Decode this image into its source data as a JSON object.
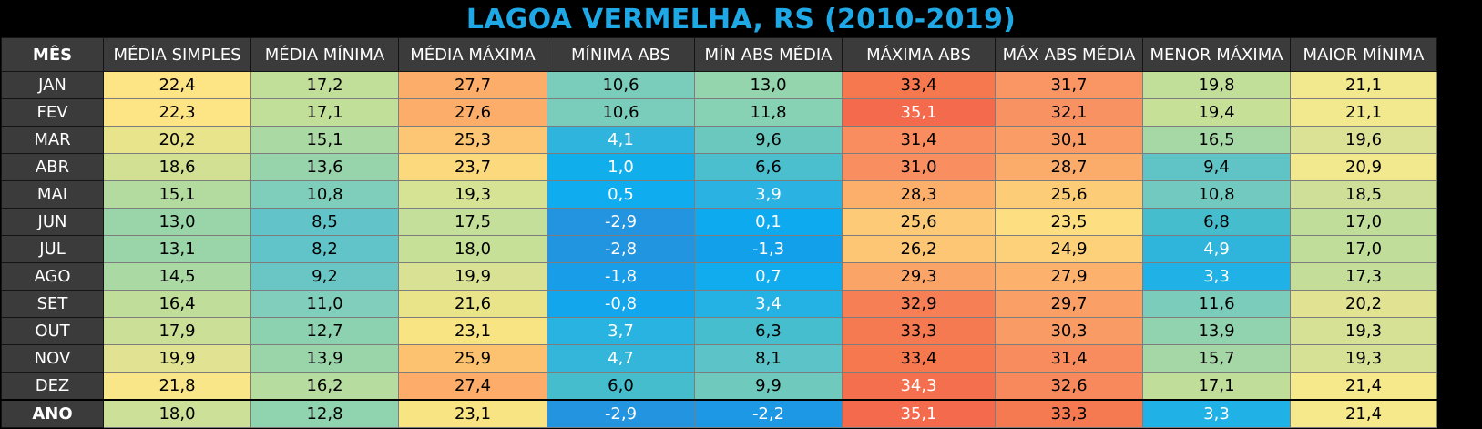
{
  "title": "LAGOA VERMELHA, RS (2010-2019)",
  "chart_data": {
    "type": "table",
    "title": "LAGOA VERMELHA, RS (2010-2019)",
    "columns": [
      "MÊS",
      "MÉDIA SIMPLES",
      "MÉDIA MÍNIMA",
      "MÉDIA MÁXIMA",
      "MÍNIMA ABS",
      "MÍN ABS MÉDIA",
      "MÁXIMA ABS",
      "MÁX ABS MÉDIA",
      "MENOR MÁXIMA",
      "MAIOR MÍNIMA"
    ],
    "rows": [
      {
        "label": "JAN",
        "values": [
          "22,4",
          "17,2",
          "27,7",
          "10,6",
          "13,0",
          "33,4",
          "31,7",
          "19,8",
          "21,1"
        ],
        "colors": [
          "#fde484",
          "#c2df9a",
          "#fcad69",
          "#7acdbb",
          "#95d5ad",
          "#f5784f",
          "#f99663",
          "#c2df9a",
          "#f2e88d"
        ]
      },
      {
        "label": "FEV",
        "values": [
          "22,3",
          "17,1",
          "27,6",
          "10,6",
          "11,8",
          "35,1",
          "32,1",
          "19,4",
          "21,1"
        ],
        "colors": [
          "#fde484",
          "#c2df9a",
          "#fcad69",
          "#7acdbb",
          "#87d1b4",
          "#f46a4c",
          "#f89262",
          "#c6e098",
          "#f2e88d"
        ]
      },
      {
        "label": "MAR",
        "values": [
          "20,2",
          "15,1",
          "25,3",
          "4,1",
          "9,6",
          "31,4",
          "30,1",
          "16,5",
          "19,6"
        ],
        "colors": [
          "#e8e48b",
          "#aad9a4",
          "#fdc674",
          "#2eb4dd",
          "#6bc8bf",
          "#f98d5f",
          "#fa9c65",
          "#a6d8a6",
          "#dbe195"
        ]
      },
      {
        "label": "ABR",
        "values": [
          "18,6",
          "13,6",
          "23,7",
          "1,0",
          "6,6",
          "31,0",
          "28,7",
          "9,4",
          "20,9"
        ],
        "colors": [
          "#d1e093",
          "#97d4ab",
          "#fdd97e",
          "#11aeec",
          "#4bbfcd",
          "#f98f60",
          "#fbab6a",
          "#60c4c6",
          "#f2e88d"
        ]
      },
      {
        "label": "MAI",
        "values": [
          "15,1",
          "10,8",
          "19,3",
          "0,5",
          "3,9",
          "28,3",
          "25,6",
          "10,8",
          "18,5"
        ],
        "colors": [
          "#b3dba0",
          "#7fcebb",
          "#d6e294",
          "#0fadef",
          "#2ab3e2",
          "#fcaf6b",
          "#fdcc77",
          "#72c9bf",
          "#cfdf98"
        ]
      },
      {
        "label": "JUN",
        "values": [
          "13,0",
          "8,5",
          "17,5",
          "-2,9",
          "0,1",
          "25,6",
          "23,5",
          "6,8",
          "17,0"
        ],
        "colors": [
          "#9ad5a9",
          "#62c4c8",
          "#c4df99",
          "#2294e0",
          "#0daaef",
          "#fdcb77",
          "#fdde80",
          "#45bdcd",
          "#c0dd9a"
        ]
      },
      {
        "label": "JUL",
        "values": [
          "13,1",
          "8,2",
          "18,0",
          "-2,8",
          "-1,3",
          "26,2",
          "24,9",
          "4,9",
          "17,0"
        ],
        "colors": [
          "#9ad5a9",
          "#60c4c8",
          "#c7e097",
          "#2295e0",
          "#12a0eb",
          "#fdc674",
          "#fdd17a",
          "#2fb5db",
          "#c0dd9a"
        ]
      },
      {
        "label": "AGO",
        "values": [
          "14,5",
          "9,2",
          "19,9",
          "-1,8",
          "0,7",
          "29,3",
          "27,9",
          "3,3",
          "17,3"
        ],
        "colors": [
          "#aad9a4",
          "#69c6c4",
          "#d9e294",
          "#189ee8",
          "#10aced",
          "#fba467",
          "#fcb16c",
          "#20b2e6",
          "#c4de99"
        ]
      },
      {
        "label": "SET",
        "values": [
          "16,4",
          "11,0",
          "21,6",
          "-0,8",
          "3,4",
          "32,9",
          "29,7",
          "11,6",
          "20,2"
        ],
        "colors": [
          "#c0dd9a",
          "#80cebb",
          "#e9e48a",
          "#12a6ec",
          "#24b2e5",
          "#f77f56",
          "#faa067",
          "#7bccbb",
          "#e1e392"
        ]
      },
      {
        "label": "OUT",
        "values": [
          "17,9",
          "12,7",
          "23,1",
          "3,7",
          "6,3",
          "33,3",
          "30,3",
          "13,9",
          "19,3"
        ],
        "colors": [
          "#cbdf97",
          "#8cd2b0",
          "#f9e484",
          "#28b3e0",
          "#47bece",
          "#f67a51",
          "#f99b64",
          "#91d3ae",
          "#d6e196"
        ]
      },
      {
        "label": "NOV",
        "values": [
          "19,9",
          "13,9",
          "25,9",
          "4,7",
          "8,1",
          "33,4",
          "31,4",
          "15,7",
          "19,3"
        ],
        "colors": [
          "#e1e392",
          "#9ad5a9",
          "#fdc270",
          "#33b6d9",
          "#5cc3c8",
          "#f5784f",
          "#f98c5e",
          "#a4d7a5",
          "#d6e196"
        ]
      },
      {
        "label": "DEZ",
        "values": [
          "21,8",
          "16,2",
          "27,4",
          "6,0",
          "9,9",
          "34,3",
          "32,6",
          "17,1",
          "21,4"
        ],
        "colors": [
          "#f9e689",
          "#b7dc9f",
          "#fdad69",
          "#45bdcd",
          "#70c9bd",
          "#f46f4d",
          "#f8895c",
          "#c0dd9a",
          "#f6e98c"
        ]
      }
    ],
    "total_row": {
      "label": "ANO",
      "values": [
        "18,0",
        "12,8",
        "23,1",
        "-2,9",
        "-2,2",
        "35,1",
        "33,3",
        "3,3",
        "21,4"
      ],
      "colors": [
        "#cde097",
        "#8fd3af",
        "#f9e484",
        "#2294e0",
        "#1d98e5",
        "#f46a4c",
        "#f67a51",
        "#20b2e6",
        "#f6e98c"
      ]
    }
  }
}
